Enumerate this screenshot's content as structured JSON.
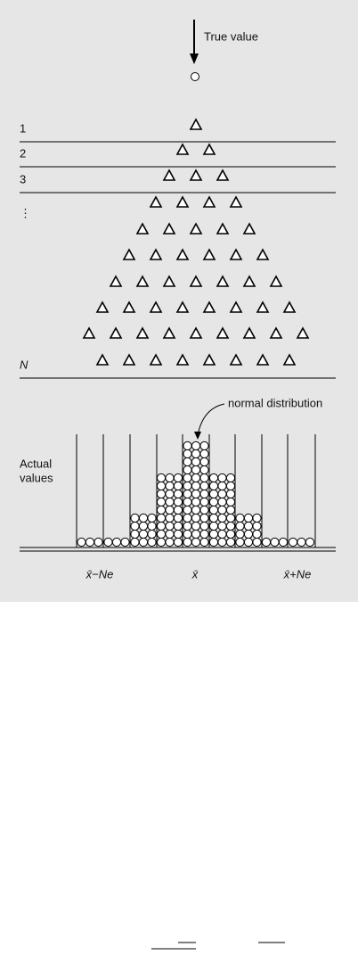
{
  "header": {
    "arrow_label": "True value"
  },
  "trials": {
    "row_labels": [
      "1",
      "2",
      "3",
      "⋮",
      "N"
    ],
    "triangle_rows": [
      1,
      2,
      3,
      4,
      5,
      6,
      7,
      8,
      9,
      8
    ]
  },
  "distribution": {
    "annotation": "normal distribution",
    "axis_label": [
      "Actual",
      "values"
    ],
    "bin_rows": [
      1,
      1,
      4,
      9,
      13,
      9,
      4,
      1,
      1
    ],
    "x_labels": [
      "x̄−Ne",
      "x̄",
      "x̄+Ne"
    ]
  }
}
